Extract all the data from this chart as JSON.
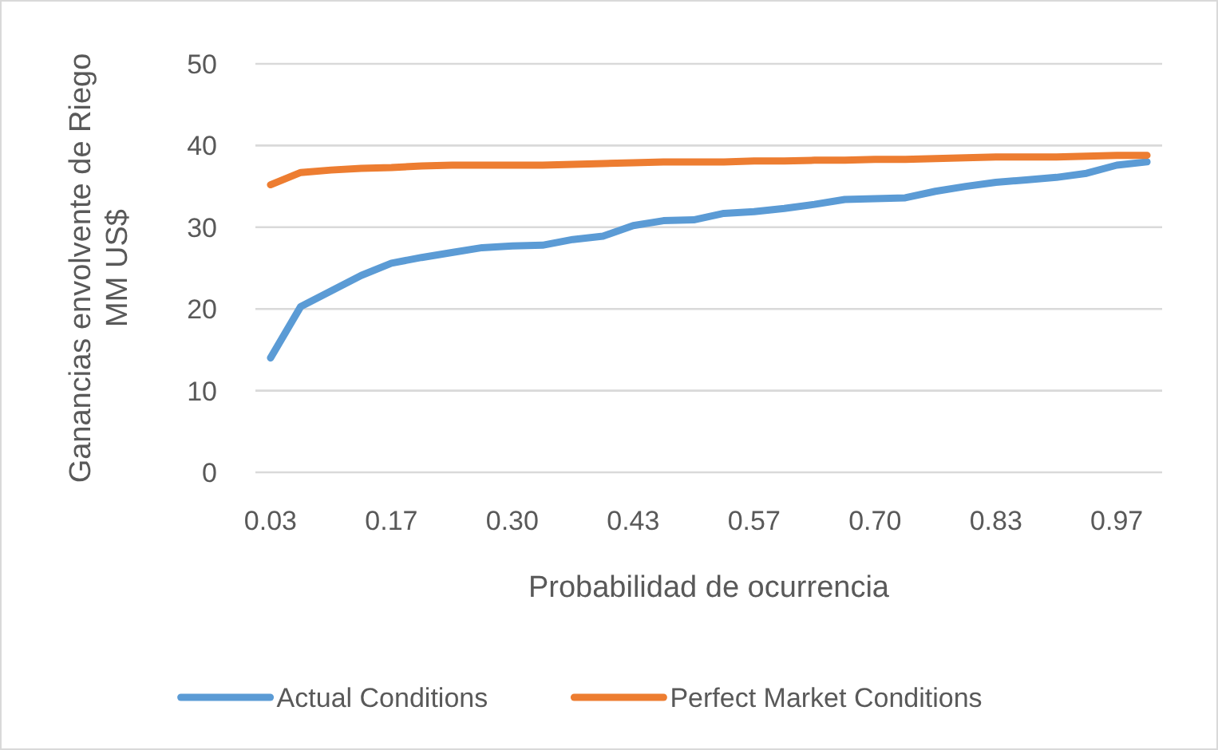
{
  "chart_data": {
    "type": "line",
    "xlabel": "Probabilidad de ocurrencia",
    "ylabel": "Ganancias envolvente de Riego\nMM US$",
    "categories": [
      "0.03",
      null,
      null,
      null,
      "0.17",
      null,
      null,
      null,
      "0.30",
      null,
      null,
      null,
      "0.43",
      null,
      null,
      null,
      "0.57",
      null,
      null,
      null,
      "0.70",
      null,
      null,
      null,
      "0.83",
      null,
      null,
      null,
      "0.97",
      null
    ],
    "series": [
      {
        "name": "Actual Conditions",
        "color": "#5b9bd5",
        "values": [
          14.0,
          20.3,
          22.2,
          24.1,
          25.6,
          26.3,
          26.9,
          27.5,
          27.7,
          27.8,
          28.5,
          28.9,
          30.2,
          30.8,
          30.9,
          31.7,
          31.9,
          32.3,
          32.8,
          33.4,
          33.5,
          33.6,
          34.4,
          35.0,
          35.5,
          35.8,
          36.1,
          36.6,
          37.6,
          38.0
        ]
      },
      {
        "name": "Perfect Market Conditions",
        "color": "#ed7d31",
        "values": [
          35.2,
          36.7,
          37.0,
          37.2,
          37.3,
          37.5,
          37.6,
          37.6,
          37.6,
          37.6,
          37.7,
          37.8,
          37.9,
          38.0,
          38.0,
          38.0,
          38.1,
          38.1,
          38.2,
          38.2,
          38.3,
          38.3,
          38.4,
          38.5,
          38.6,
          38.6,
          38.6,
          38.7,
          38.8,
          38.8
        ]
      }
    ],
    "ylim": [
      0,
      50
    ],
    "yticks": [
      0,
      10,
      20,
      30,
      40,
      50
    ],
    "grid": "y",
    "legend": "bottom",
    "marker": "none",
    "line_style": "solid"
  }
}
